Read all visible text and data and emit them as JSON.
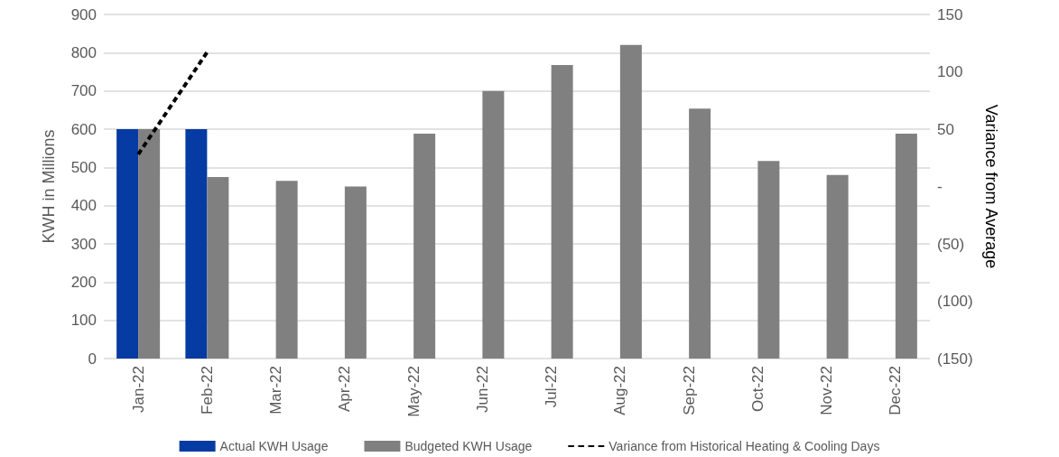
{
  "chart_data": {
    "type": "bar",
    "categories": [
      "Jan-22",
      "Feb-22",
      "Mar-22",
      "Apr-22",
      "May-22",
      "Jun-22",
      "Jul-22",
      "Aug-22",
      "Sep-22",
      "Oct-22",
      "Nov-22",
      "Dec-22"
    ],
    "series": [
      {
        "name": "Actual KWH Usage",
        "color": "#063ba3",
        "values": [
          600,
          600,
          null,
          null,
          null,
          null,
          null,
          null,
          null,
          null,
          null,
          null
        ]
      },
      {
        "name": "Budgeted KWH Usage",
        "color": "#808080",
        "values": [
          600,
          475,
          465,
          450,
          588,
          700,
          768,
          820,
          654,
          517,
          480,
          588
        ]
      },
      {
        "name": "Variance from Historical Heating & Cooling Days",
        "type": "line",
        "axis": "y2",
        "color": "#000000",
        "line_style": "dashed",
        "values": [
          28,
          117,
          null,
          null,
          null,
          null,
          null,
          null,
          null,
          null,
          null,
          null
        ]
      }
    ],
    "ylabel": "KWH in Millions",
    "y2label": "Variance from Average",
    "ylim": [
      0,
      900
    ],
    "yticks": [
      0,
      100,
      200,
      300,
      400,
      500,
      600,
      700,
      800,
      900
    ],
    "y2lim": [
      -150,
      150
    ],
    "y2ticks": [
      {
        "value": -150,
        "label": "(150)"
      },
      {
        "value": -100,
        "label": "(100)"
      },
      {
        "value": -50,
        "label": "(50)"
      },
      {
        "value": 0,
        "label": "-"
      },
      50,
      100,
      150
    ],
    "grid": "y",
    "legend": "bottom"
  }
}
